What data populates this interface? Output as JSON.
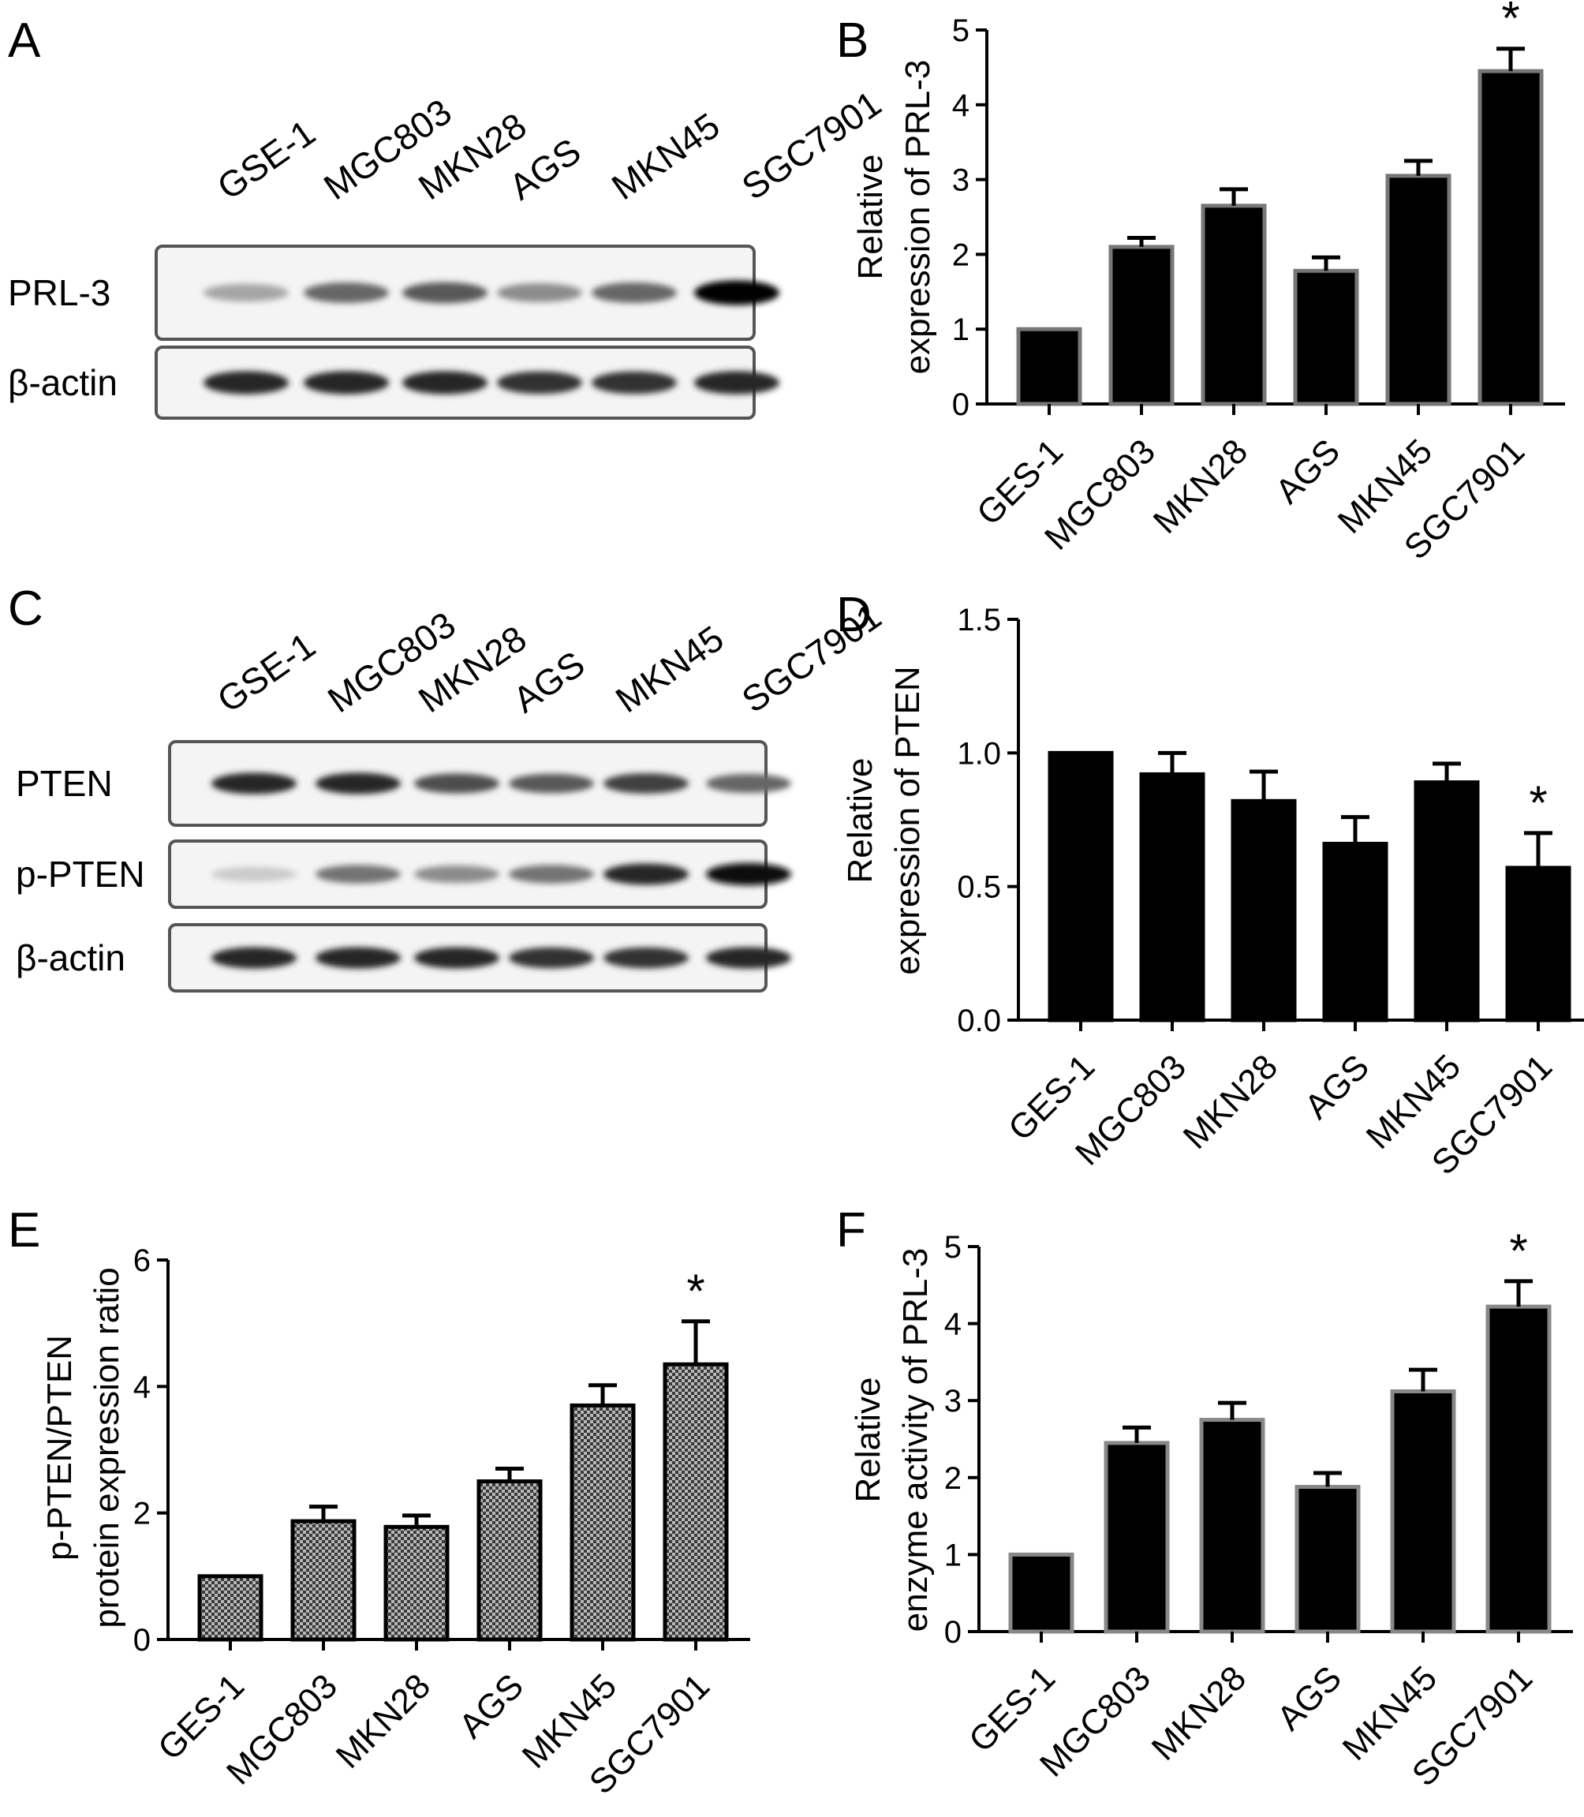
{
  "panels": {
    "A": {
      "letter": "A",
      "lanes": [
        "GSE-1",
        "MGC803",
        "MKN28",
        "AGS",
        "MKN45",
        "SGC7901"
      ],
      "bands": [
        {
          "label": "PRL-3",
          "intensity": [
            0.35,
            0.6,
            0.65,
            0.45,
            0.6,
            1.0
          ]
        },
        {
          "label": "β-actin",
          "intensity": [
            0.85,
            0.85,
            0.85,
            0.8,
            0.8,
            0.85
          ]
        }
      ]
    },
    "C": {
      "letter": "C",
      "lanes": [
        "GSE-1",
        "MGC803",
        "MKN28",
        "AGS",
        "MKN45",
        "SGC7901"
      ],
      "bands": [
        {
          "label": "PTEN",
          "intensity": [
            0.85,
            0.85,
            0.7,
            0.65,
            0.75,
            0.6
          ]
        },
        {
          "label": "p-PTEN",
          "intensity": [
            0.2,
            0.55,
            0.45,
            0.55,
            0.85,
            0.95
          ]
        },
        {
          "label": "β-actin",
          "intensity": [
            0.85,
            0.85,
            0.85,
            0.8,
            0.8,
            0.85
          ]
        }
      ]
    }
  },
  "chart_data": [
    {
      "panel": "B",
      "letter": "B",
      "type": "bar",
      "categories": [
        "GES-1",
        "MGC803",
        "MKN28",
        "AGS",
        "MKN45",
        "SGC7901"
      ],
      "values": [
        1.0,
        2.1,
        2.65,
        1.78,
        3.05,
        4.45
      ],
      "errors": [
        0.0,
        0.12,
        0.22,
        0.18,
        0.2,
        0.3
      ],
      "significance": [
        "",
        "",
        "",
        "",
        "",
        "*"
      ],
      "ylabel_lines": [
        "Relative",
        "expression of PRL-3"
      ],
      "xlabel": "",
      "ylim": [
        0,
        5
      ],
      "yticks": [
        "0",
        "1",
        "2",
        "3",
        "4",
        "5"
      ],
      "fill": "#000000",
      "outline": "#777777"
    },
    {
      "panel": "D",
      "letter": "D",
      "type": "bar",
      "categories": [
        "GES-1",
        "MGC803",
        "MKN28",
        "AGS",
        "MKN45",
        "SGC7901"
      ],
      "values": [
        1.0,
        0.92,
        0.82,
        0.66,
        0.89,
        0.57
      ],
      "errors": [
        0.0,
        0.08,
        0.11,
        0.1,
        0.07,
        0.13
      ],
      "significance": [
        "",
        "",
        "",
        "",
        "",
        "*"
      ],
      "ylabel_lines": [
        "Relative",
        "expression of PTEN"
      ],
      "xlabel": "",
      "ylim": [
        0,
        1.5
      ],
      "yticks": [
        "0.0",
        "0.5",
        "1.0",
        "1.5"
      ],
      "fill": "#000000",
      "outline": "#000000"
    },
    {
      "panel": "E",
      "letter": "E",
      "type": "bar",
      "categories": [
        "GES-1",
        "MGC803",
        "MKN28",
        "AGS",
        "MKN45",
        "SGC7901"
      ],
      "values": [
        1.0,
        1.87,
        1.78,
        2.5,
        3.7,
        4.35
      ],
      "errors": [
        0.0,
        0.23,
        0.18,
        0.2,
        0.32,
        0.68
      ],
      "significance": [
        "",
        "",
        "",
        "",
        "",
        "*"
      ],
      "ylabel_lines": [
        "p-PTEN/PTEN",
        "protein expression ratio"
      ],
      "xlabel": "",
      "ylim": [
        0,
        6
      ],
      "yticks": [
        "0",
        "2",
        "4",
        "6"
      ],
      "fill": "checker",
      "outline": "#000000"
    },
    {
      "panel": "F",
      "letter": "F",
      "type": "bar",
      "categories": [
        "GES-1",
        "MGC803",
        "MKN28",
        "AGS",
        "MKN45",
        "SGC7901"
      ],
      "values": [
        1.0,
        2.45,
        2.75,
        1.88,
        3.12,
        4.22
      ],
      "errors": [
        0.0,
        0.2,
        0.22,
        0.18,
        0.28,
        0.33
      ],
      "significance": [
        "",
        "",
        "",
        "",
        "",
        "*"
      ],
      "ylabel_lines": [
        "Relative",
        "enzyme activity of PRL-3"
      ],
      "xlabel": "",
      "ylim": [
        0,
        5
      ],
      "yticks": [
        "0",
        "1",
        "2",
        "3",
        "4",
        "5"
      ],
      "fill": "#000000",
      "outline": "#888888"
    }
  ]
}
